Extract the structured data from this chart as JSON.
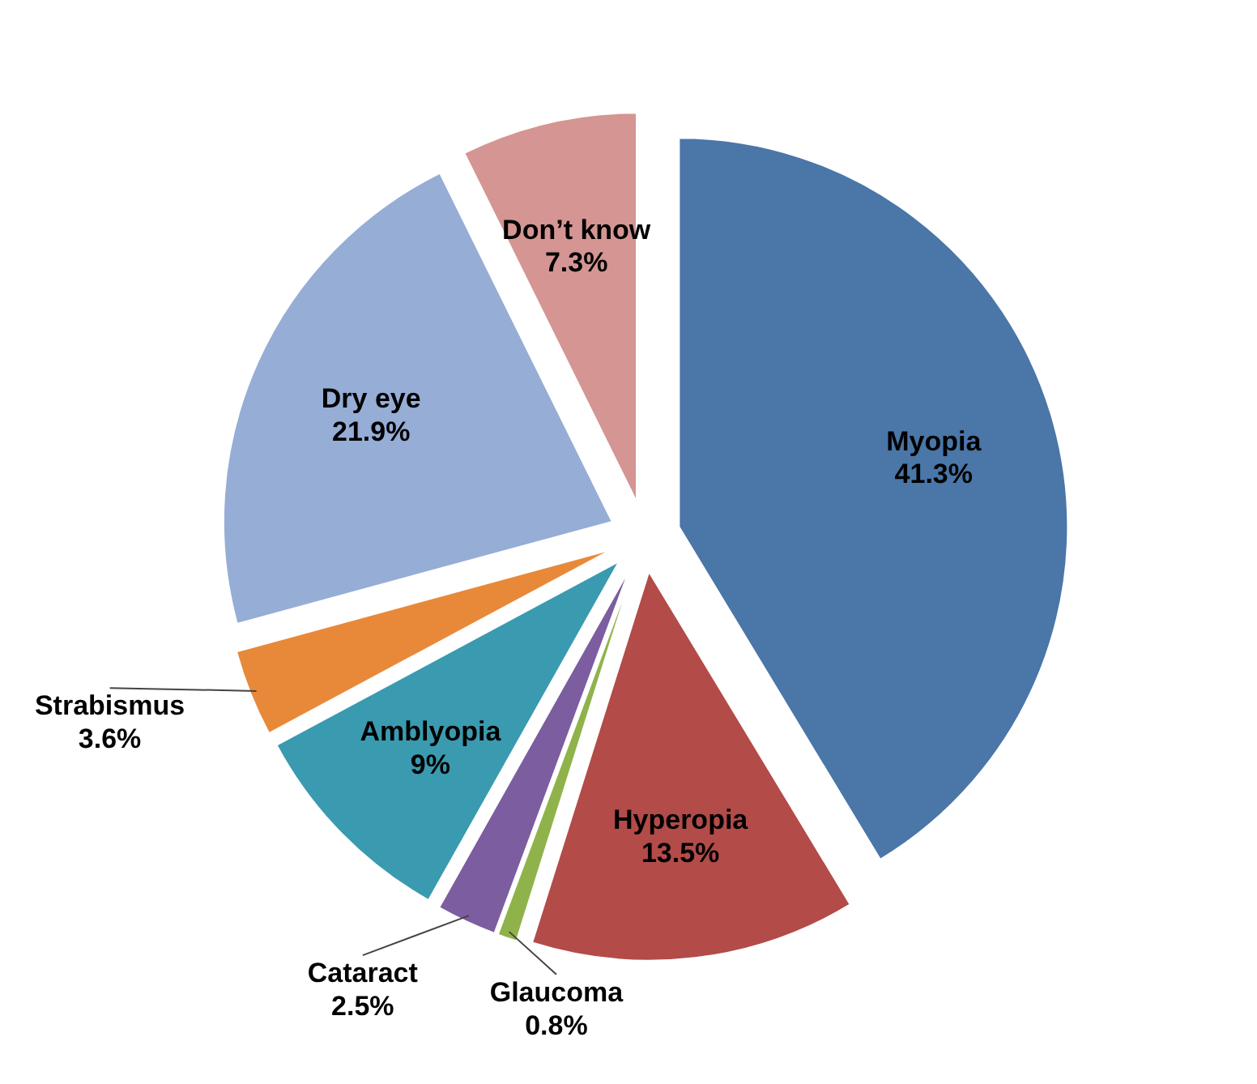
{
  "chart_data": {
    "type": "pie",
    "categories": [
      "Myopia",
      "Hyperopia",
      "Glaucoma",
      "Cataract",
      "Amblyopia",
      "Strabismus",
      "Dry eye",
      "Don’t know"
    ],
    "values": [
      41.3,
      13.5,
      0.8,
      2.5,
      9,
      3.6,
      21.9,
      7.3
    ],
    "value_labels": [
      "41.3%",
      "13.5%",
      "0.8%",
      "2.5%",
      "9%",
      "3.6%",
      "21.9%",
      "7.3%"
    ],
    "colors": [
      "#4a76a8",
      "#b34b48",
      "#8fb34a",
      "#7c5da0",
      "#3a9ab0",
      "#e8893a",
      "#96add6",
      "#d49593"
    ],
    "legend": false
  }
}
